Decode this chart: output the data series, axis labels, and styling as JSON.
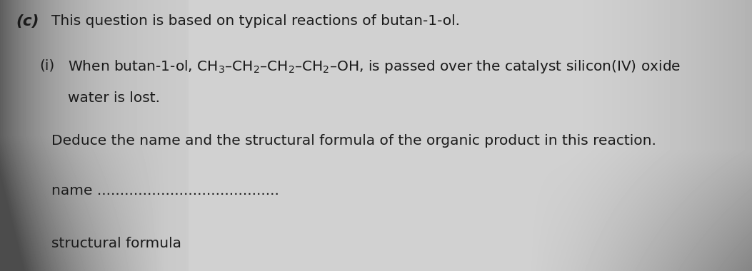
{
  "label_c": "(c)",
  "line1": "This question is based on typical reactions of butan-1-ol.",
  "label_i": "(i)",
  "line2b": "water is lost.",
  "line3": "Deduce the name and the structural formula of the organic product in this reaction.",
  "line4": "name ........................................",
  "line5": "structural formula",
  "fontsize_main": 14.5,
  "fontsize_label_c": 15.5,
  "fontsize_label_i": 14.5,
  "text_color": "#1a1a1a",
  "bg_base": "#cccccc",
  "chem_formula": "When butan-1-ol, CH$_3$–CH$_2$–CH$_2$–CH$_2$–OH, is passed over the catalyst silicon(IV) oxide"
}
